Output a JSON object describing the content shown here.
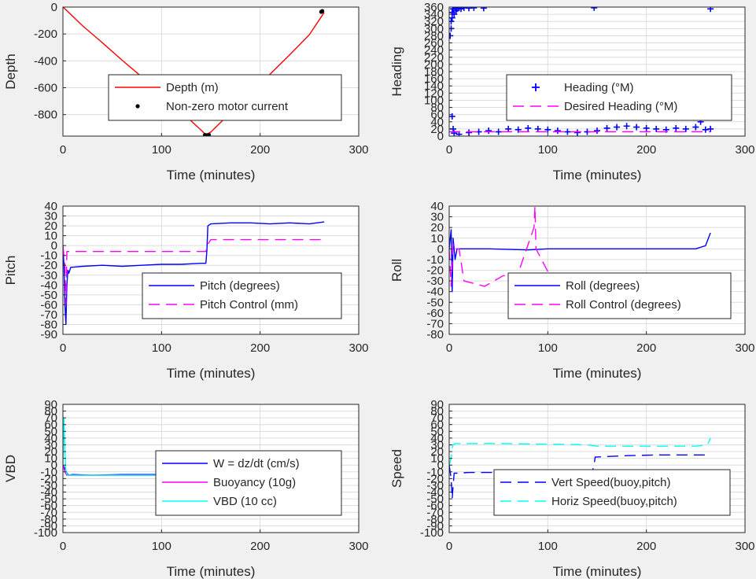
{
  "chart_data": [
    {
      "id": "depth",
      "type": "line",
      "xlabel": "Time (minutes)",
      "ylabel": "Depth",
      "xlim": [
        0,
        300
      ],
      "ylim": [
        -960,
        0
      ],
      "xticks": [
        0,
        100,
        200,
        300
      ],
      "yticks": [
        -800,
        -600,
        -400,
        -200,
        0
      ],
      "grid": true,
      "legend_position": "center-right",
      "series": [
        {
          "name": "Depth (m)",
          "color": "#ff0000",
          "style": "solid",
          "x": [
            0,
            3,
            20,
            40,
            60,
            80,
            100,
            120,
            140,
            145,
            150,
            170,
            190,
            210,
            230,
            250,
            265
          ],
          "y": [
            0,
            -20,
            -140,
            -265,
            -395,
            -520,
            -650,
            -780,
            -915,
            -950,
            -930,
            -785,
            -650,
            -500,
            -355,
            -205,
            -40
          ]
        },
        {
          "name": "Non-zero motor current",
          "color": "#000000",
          "style": "marker",
          "x": [
            144,
            146,
            148,
            262,
            263
          ],
          "y": [
            -952,
            -953,
            -951,
            -35,
            -30
          ]
        }
      ]
    },
    {
      "id": "heading",
      "type": "line",
      "xlabel": "Time (minutes)",
      "ylabel": "Heading",
      "xlim": [
        0,
        300
      ],
      "ylim": [
        0,
        360
      ],
      "xticks": [
        0,
        100,
        200,
        300
      ],
      "yticks": [
        0,
        20,
        40,
        60,
        80,
        100,
        120,
        140,
        160,
        180,
        200,
        220,
        240,
        260,
        280,
        300,
        320,
        340,
        360
      ],
      "grid": true,
      "legend_position": "right",
      "series": [
        {
          "name": "Heading (°M)",
          "color": "#0000ff",
          "style": "plus",
          "x": [
            1,
            2,
            2,
            3,
            3,
            4,
            5,
            6,
            7,
            8,
            10,
            12,
            15,
            20,
            25,
            35,
            147,
            265,
            3,
            4,
            5,
            10,
            20,
            30,
            40,
            50,
            60,
            70,
            80,
            90,
            100,
            110,
            120,
            130,
            140,
            150,
            160,
            170,
            180,
            190,
            200,
            210,
            220,
            230,
            240,
            250,
            255,
            260,
            265
          ],
          "y": [
            280,
            300,
            320,
            330,
            345,
            355,
            340,
            358,
            350,
            355,
            358,
            355,
            358,
            357,
            358,
            357,
            358,
            355,
            55,
            20,
            8,
            5,
            10,
            12,
            15,
            12,
            20,
            18,
            22,
            20,
            18,
            15,
            12,
            10,
            12,
            15,
            22,
            25,
            28,
            25,
            22,
            20,
            18,
            22,
            20,
            25,
            40,
            18,
            20
          ]
        },
        {
          "name": "Desired Heading (°M)",
          "color": "#ff00ff",
          "style": "dash",
          "x": [
            0,
            265
          ],
          "y": [
            12,
            12
          ]
        }
      ]
    },
    {
      "id": "pitch",
      "type": "line",
      "xlabel": "Time (minutes)",
      "ylabel": "Pitch",
      "xlim": [
        0,
        300
      ],
      "ylim": [
        -90,
        40
      ],
      "xticks": [
        0,
        100,
        200,
        300
      ],
      "yticks": [
        -90,
        -80,
        -70,
        -60,
        -50,
        -40,
        -30,
        -20,
        -10,
        0,
        10,
        20,
        30,
        40
      ],
      "grid": true,
      "legend_position": "lower-right",
      "series": [
        {
          "name": "Pitch (degrees)",
          "color": "#0000ff",
          "style": "solid",
          "x": [
            0,
            1,
            2,
            3,
            4,
            5,
            6,
            8,
            10,
            20,
            40,
            60,
            80,
            100,
            120,
            140,
            145,
            146,
            147,
            150,
            170,
            190,
            210,
            230,
            250,
            265
          ],
          "y": [
            0,
            -20,
            -60,
            -80,
            -40,
            -25,
            -28,
            -22,
            -22,
            -21,
            -20,
            -21,
            -20,
            -19,
            -19,
            -18,
            -18,
            -5,
            20,
            22,
            23,
            23,
            22,
            23,
            22,
            24
          ]
        },
        {
          "name": "Pitch Control (mm)",
          "color": "#ff00ff",
          "style": "dash",
          "x": [
            0,
            2,
            3,
            4,
            6,
            145,
            146,
            150,
            265
          ],
          "y": [
            0,
            -20,
            -60,
            -6,
            -6,
            -6,
            0,
            6,
            6
          ]
        }
      ]
    },
    {
      "id": "roll",
      "type": "line",
      "xlabel": "Time (minutes)",
      "ylabel": "Roll",
      "xlim": [
        0,
        300
      ],
      "ylim": [
        -80,
        40
      ],
      "xticks": [
        0,
        100,
        200,
        300
      ],
      "yticks": [
        -80,
        -70,
        -60,
        -50,
        -40,
        -30,
        -20,
        -10,
        0,
        10,
        20,
        30,
        40
      ],
      "grid": true,
      "legend_position": "lower-right",
      "series": [
        {
          "name": "Roll (degrees)",
          "color": "#0000ff",
          "style": "solid",
          "x": [
            0,
            2,
            3,
            4,
            6,
            8,
            10,
            40,
            80,
            100,
            150,
            200,
            250,
            260,
            265
          ],
          "y": [
            0,
            18,
            -40,
            10,
            -10,
            0,
            0,
            0,
            -1,
            0,
            0,
            0,
            0,
            3,
            15
          ]
        },
        {
          "name": "Roll Control (degrees)",
          "color": "#ff00ff",
          "style": "dash",
          "x": [
            0,
            2,
            4,
            6,
            10,
            15,
            36,
            55,
            68,
            86,
            87,
            88,
            105,
            150,
            155,
            160,
            170,
            180,
            190,
            200,
            210,
            220,
            230,
            240,
            250,
            265
          ],
          "y": [
            0,
            -35,
            5,
            0,
            0,
            -30,
            -35,
            -25,
            -28,
            20,
            40,
            0,
            -30,
            -35,
            -30,
            -35,
            -30,
            -35,
            -30,
            -35,
            -30,
            -35,
            -30,
            -35,
            -30,
            -35
          ]
        }
      ]
    },
    {
      "id": "vbd",
      "type": "line",
      "xlabel": "Time (minutes)",
      "ylabel": "VBD",
      "xlim": [
        0,
        300
      ],
      "ylim": [
        -100,
        90
      ],
      "xticks": [
        0,
        100,
        200,
        300
      ],
      "yticks": [
        -100,
        -90,
        -80,
        -70,
        -60,
        -50,
        -40,
        -30,
        -20,
        -10,
        0,
        10,
        20,
        30,
        40,
        50,
        60,
        70,
        80,
        90
      ],
      "grid": true,
      "legend_position": "lower-right",
      "series": [
        {
          "name": "W = dz/dt (cm/s)",
          "color": "#0000ff",
          "style": "solid",
          "x": [
            0,
            2,
            4,
            6,
            10,
            30,
            60,
            90,
            120,
            140,
            145,
            148,
            150,
            180,
            210,
            240,
            260,
            263,
            265
          ],
          "y": [
            0,
            -5,
            -12,
            -15,
            -14,
            -15,
            -14,
            -14,
            -14,
            -13,
            -10,
            12,
            13,
            13,
            13,
            13,
            12,
            20,
            12
          ]
        },
        {
          "name": "Buoyancy (10g)",
          "color": "#ff00ff",
          "style": "solid",
          "x": [
            0,
            2,
            4,
            10,
            140,
            145,
            148,
            265
          ],
          "y": [
            0,
            -10,
            -15,
            -15,
            -15,
            -10,
            15,
            15
          ]
        },
        {
          "name": "VBD (10 cc)",
          "color": "#00ffff",
          "style": "solid",
          "x": [
            0,
            1,
            2,
            3,
            5,
            10,
            140,
            145,
            148,
            265
          ],
          "y": [
            0,
            70,
            20,
            -10,
            -15,
            -15,
            -15,
            -10,
            15,
            15
          ]
        }
      ]
    },
    {
      "id": "speed",
      "type": "line",
      "xlabel": "Time (minutes)",
      "ylabel": "Speed",
      "xlim": [
        0,
        300
      ],
      "ylim": [
        -100,
        90
      ],
      "xticks": [
        0,
        100,
        200,
        300
      ],
      "yticks": [
        -100,
        -90,
        -80,
        -70,
        -60,
        -50,
        -40,
        -30,
        -20,
        -10,
        0,
        10,
        20,
        30,
        40,
        50,
        60,
        70,
        80,
        90
      ],
      "grid": true,
      "legend_position": "lower-right",
      "series": [
        {
          "name": "Vert Speed(buoy,pitch)",
          "color": "#0000ff",
          "style": "dash",
          "x": [
            0,
            2,
            3,
            4,
            5,
            8,
            20,
            60,
            100,
            140,
            145,
            147,
            148,
            150,
            180,
            210,
            240,
            260,
            265
          ],
          "y": [
            0,
            -20,
            -50,
            -30,
            -12,
            -12,
            -11,
            -11,
            -10,
            -10,
            -10,
            0,
            12,
            12,
            14,
            15,
            15,
            15,
            15
          ]
        },
        {
          "name": "Horiz Speed(buoy,pitch)",
          "color": "#00ffff",
          "style": "dash",
          "x": [
            0,
            2,
            3,
            4,
            6,
            50,
            100,
            140,
            145,
            150,
            200,
            250,
            262,
            265
          ],
          "y": [
            0,
            10,
            25,
            30,
            32,
            32,
            31,
            30,
            29,
            28,
            28,
            28,
            30,
            40
          ]
        }
      ]
    }
  ]
}
